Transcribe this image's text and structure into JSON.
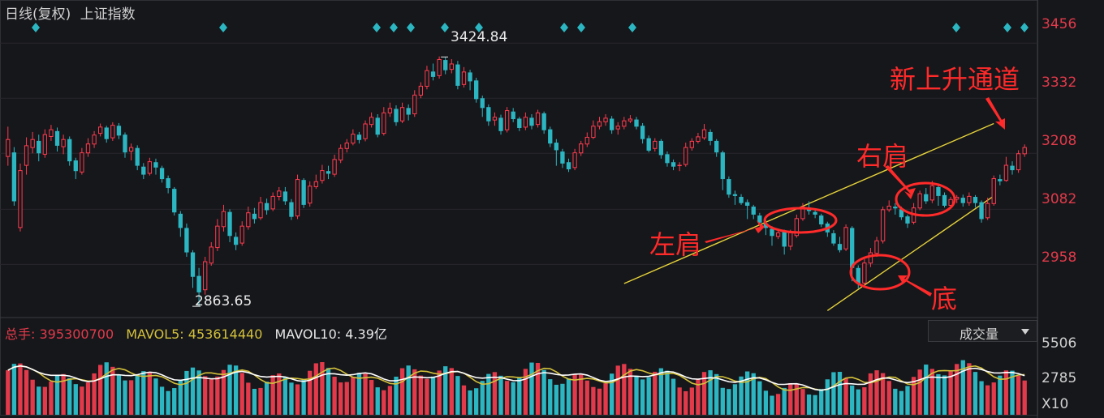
{
  "header": {
    "mode": "日线(复权)",
    "index_name": "上证指数"
  },
  "price_axis": {
    "ticks": [
      "3456",
      "3332",
      "3208",
      "3082",
      "2958"
    ]
  },
  "markers": {
    "high_label": "3424.84",
    "low_label": "2863.65"
  },
  "annotations": {
    "left_shoulder": "左肩",
    "right_shoulder": "右肩",
    "bottom": "底",
    "channel": "新上升通道"
  },
  "volume_panel": {
    "total_label": "总手:",
    "total_value": "395300700",
    "ma5_label": "MAVOL5:",
    "ma5_value": "453614440",
    "ma10_label": "MAVOL10:",
    "ma10_value": "4.39亿",
    "selector": "成交量",
    "axis_ticks": [
      "5506",
      "2785"
    ],
    "unit": "X10"
  },
  "colors": {
    "up": "#ff3b4e",
    "down": "#2bb6c2",
    "channel": "#e6d23a",
    "annotation": "#ff2a2a",
    "bg": "#16171b"
  },
  "chart_data": {
    "type": "candlestick",
    "title": "上证指数 日线(复权)",
    "ylim": [
      2842,
      3502
    ],
    "candles": [
      [
        3200,
        3240,
        3180,
        3268
      ],
      [
        3210,
        3100,
        3090,
        3222
      ],
      [
        3040,
        3170,
        3032,
        3185
      ],
      [
        3180,
        3226,
        3160,
        3244
      ],
      [
        3220,
        3240,
        3208,
        3256
      ],
      [
        3236,
        3208,
        3190,
        3250
      ],
      [
        3205,
        3251,
        3198,
        3262
      ],
      [
        3245,
        3262,
        3236,
        3272
      ],
      [
        3258,
        3225,
        3212,
        3266
      ],
      [
        3222,
        3240,
        3206,
        3250
      ],
      [
        3240,
        3190,
        3180,
        3246
      ],
      [
        3192,
        3168,
        3150,
        3198
      ],
      [
        3165,
        3210,
        3160,
        3220
      ],
      [
        3208,
        3230,
        3200,
        3242
      ],
      [
        3228,
        3250,
        3220,
        3258
      ],
      [
        3252,
        3268,
        3246,
        3275
      ],
      [
        3266,
        3240,
        3232,
        3270
      ],
      [
        3242,
        3272,
        3236,
        3278
      ],
      [
        3270,
        3248,
        3240,
        3276
      ],
      [
        3250,
        3210,
        3198,
        3255
      ],
      [
        3212,
        3222,
        3192,
        3230
      ],
      [
        3220,
        3180,
        3170,
        3226
      ],
      [
        3178,
        3160,
        3150,
        3186
      ],
      [
        3162,
        3190,
        3158,
        3198
      ],
      [
        3188,
        3176,
        3160,
        3196
      ],
      [
        3175,
        3150,
        3142,
        3180
      ],
      [
        3152,
        3130,
        3118,
        3158
      ],
      [
        3128,
        3075,
        3068,
        3132
      ],
      [
        3072,
        3040,
        3020,
        3078
      ],
      [
        3040,
        2985,
        2975,
        3050
      ],
      [
        2985,
        2930,
        2905,
        2990
      ],
      [
        2932,
        2895,
        2864,
        2950
      ],
      [
        2900,
        2965,
        2890,
        2975
      ],
      [
        2960,
        2998,
        2955,
        3008
      ],
      [
        2995,
        3045,
        2988,
        3060
      ],
      [
        3042,
        3078,
        3032,
        3092
      ],
      [
        3076,
        3022,
        3008,
        3082
      ],
      [
        3020,
        3002,
        2990,
        3030
      ],
      [
        3005,
        3045,
        3000,
        3055
      ],
      [
        3042,
        3075,
        3036,
        3088
      ],
      [
        3072,
        3060,
        3050,
        3085
      ],
      [
        3062,
        3098,
        3058,
        3110
      ],
      [
        3096,
        3080,
        3070,
        3106
      ],
      [
        3082,
        3112,
        3078,
        3120
      ],
      [
        3110,
        3124,
        3102,
        3132
      ],
      [
        3122,
        3100,
        3092,
        3132
      ],
      [
        3098,
        3065,
        3058,
        3105
      ],
      [
        3066,
        3150,
        3060,
        3160
      ],
      [
        3148,
        3092,
        3085,
        3152
      ],
      [
        3095,
        3135,
        3088,
        3145
      ],
      [
        3132,
        3145,
        3128,
        3160
      ],
      [
        3146,
        3170,
        3140,
        3182
      ],
      [
        3168,
        3162,
        3150,
        3180
      ],
      [
        3160,
        3195,
        3155,
        3205
      ],
      [
        3192,
        3220,
        3186,
        3228
      ],
      [
        3218,
        3232,
        3210,
        3240
      ],
      [
        3230,
        3252,
        3226,
        3262
      ],
      [
        3250,
        3238,
        3230,
        3256
      ],
      [
        3240,
        3275,
        3235,
        3282
      ],
      [
        3272,
        3290,
        3266,
        3300
      ],
      [
        3288,
        3250,
        3244,
        3296
      ],
      [
        3252,
        3300,
        3248,
        3312
      ],
      [
        3298,
        3310,
        3290,
        3322
      ],
      [
        3308,
        3278,
        3270,
        3316
      ],
      [
        3280,
        3312,
        3276,
        3322
      ],
      [
        3310,
        3295,
        3282,
        3318
      ],
      [
        3296,
        3340,
        3290,
        3350
      ],
      [
        3338,
        3360,
        3332,
        3368
      ],
      [
        3358,
        3395,
        3352,
        3405
      ],
      [
        3392,
        3380,
        3372,
        3410
      ],
      [
        3382,
        3420,
        3376,
        3426
      ],
      [
        3418,
        3395,
        3386,
        3424
      ],
      [
        3396,
        3410,
        3388,
        3420
      ],
      [
        3408,
        3360,
        3352,
        3416
      ],
      [
        3362,
        3392,
        3356,
        3402
      ],
      [
        3390,
        3370,
        3350,
        3396
      ],
      [
        3372,
        3330,
        3322,
        3378
      ],
      [
        3332,
        3310,
        3290,
        3338
      ],
      [
        3312,
        3280,
        3270,
        3318
      ],
      [
        3282,
        3290,
        3270,
        3300
      ],
      [
        3288,
        3258,
        3250,
        3295
      ],
      [
        3260,
        3305,
        3255,
        3312
      ],
      [
        3302,
        3285,
        3278,
        3310
      ],
      [
        3286,
        3265,
        3258,
        3290
      ],
      [
        3266,
        3290,
        3260,
        3300
      ],
      [
        3288,
        3270,
        3262,
        3296
      ],
      [
        3272,
        3300,
        3266,
        3306
      ],
      [
        3298,
        3260,
        3252,
        3302
      ],
      [
        3262,
        3230,
        3222,
        3268
      ],
      [
        3232,
        3215,
        3180,
        3240
      ],
      [
        3212,
        3185,
        3175,
        3218
      ],
      [
        3188,
        3172,
        3166,
        3196
      ],
      [
        3175,
        3210,
        3170,
        3218
      ],
      [
        3208,
        3230,
        3202,
        3236
      ],
      [
        3228,
        3245,
        3222,
        3255
      ],
      [
        3243,
        3270,
        3240,
        3282
      ],
      [
        3268,
        3280,
        3262,
        3290
      ],
      [
        3278,
        3288,
        3270,
        3296
      ],
      [
        3286,
        3260,
        3252,
        3292
      ],
      [
        3262,
        3270,
        3250,
        3278
      ],
      [
        3268,
        3282,
        3262,
        3290
      ],
      [
        3280,
        3286,
        3276,
        3294
      ],
      [
        3284,
        3268,
        3262,
        3290
      ],
      [
        3270,
        3240,
        3230,
        3276
      ],
      [
        3242,
        3214,
        3210,
        3248
      ],
      [
        3218,
        3236,
        3212,
        3242
      ],
      [
        3236,
        3204,
        3196,
        3240
      ],
      [
        3206,
        3186,
        3178,
        3212
      ],
      [
        3188,
        3178,
        3170,
        3194
      ],
      [
        3180,
        3182,
        3168,
        3188
      ],
      [
        3182,
        3222,
        3178,
        3232
      ],
      [
        3220,
        3236,
        3214,
        3242
      ],
      [
        3234,
        3246,
        3230,
        3254
      ],
      [
        3242,
        3262,
        3238,
        3274
      ],
      [
        3256,
        3236,
        3226,
        3262
      ],
      [
        3236,
        3210,
        3200,
        3240
      ],
      [
        3210,
        3150,
        3125,
        3214
      ],
      [
        3150,
        3115,
        3108,
        3156
      ],
      [
        3116,
        3112,
        3092,
        3124
      ],
      [
        3110,
        3096,
        3092,
        3116
      ],
      [
        3098,
        3090,
        3060,
        3104
      ],
      [
        3088,
        3070,
        3060,
        3092
      ],
      [
        3068,
        3052,
        3046,
        3074
      ],
      [
        3050,
        3040,
        3024,
        3058
      ],
      [
        3038,
        3022,
        3000,
        3044
      ],
      [
        3020,
        3030,
        3015,
        3034
      ],
      [
        3032,
        2998,
        2980,
        3036
      ],
      [
        2998,
        3030,
        2990,
        3036
      ],
      [
        3022,
        3062,
        3018,
        3070
      ],
      [
        3060,
        3088,
        3056,
        3096
      ],
      [
        3086,
        3078,
        3070,
        3100
      ],
      [
        3076,
        3070,
        3062,
        3084
      ],
      [
        3068,
        3048,
        3042,
        3072
      ],
      [
        3050,
        3030,
        3020,
        3054
      ],
      [
        3028,
        3005,
        3000,
        3035
      ],
      [
        3004,
        2990,
        2985,
        3020
      ],
      [
        2992,
        3042,
        2988,
        3048
      ],
      [
        3040,
        2950,
        2920,
        3044
      ],
      [
        2950,
        2915,
        2904,
        2956
      ],
      [
        2915,
        2962,
        2910,
        2970
      ],
      [
        2960,
        2985,
        2952,
        2995
      ],
      [
        2982,
        3012,
        2975,
        3020
      ],
      [
        3010,
        3082,
        3005,
        3088
      ],
      [
        3080,
        3090,
        3076,
        3102
      ],
      [
        3088,
        3084,
        3070,
        3096
      ],
      [
        3082,
        3064,
        3058,
        3088
      ],
      [
        3066,
        3050,
        3040,
        3070
      ],
      [
        3052,
        3086,
        3048,
        3096
      ],
      [
        3084,
        3118,
        3080,
        3124
      ],
      [
        3116,
        3100,
        3094,
        3130
      ],
      [
        3102,
        3136,
        3096,
        3146
      ],
      [
        3132,
        3112,
        3090,
        3140
      ],
      [
        3114,
        3090,
        3086,
        3120
      ],
      [
        3090,
        3105,
        3086,
        3110
      ],
      [
        3104,
        3110,
        3096,
        3114
      ],
      [
        3108,
        3096,
        3088,
        3115
      ],
      [
        3096,
        3112,
        3090,
        3120
      ],
      [
        3110,
        3096,
        3086,
        3114
      ],
      [
        3098,
        3060,
        3052,
        3102
      ],
      [
        3062,
        3096,
        3058,
        3108
      ],
      [
        3094,
        3152,
        3090,
        3158
      ],
      [
        3150,
        3145,
        3136,
        3160
      ],
      [
        3146,
        3182,
        3144,
        3200
      ],
      [
        3180,
        3170,
        3160,
        3190
      ],
      [
        3170,
        3208,
        3164,
        3215
      ],
      [
        3206,
        3222,
        3200,
        3228
      ]
    ],
    "high_point": 3424.84,
    "low_point": 2863.65,
    "channel_lines": [
      {
        "name": "upper",
        "from": [
          100,
          2915
        ],
        "to": [
          160,
          3275
        ]
      },
      {
        "name": "lower",
        "from": [
          133,
          2854
        ],
        "to": [
          160,
          3112
        ]
      }
    ],
    "volume_ylim": [
      0,
      5506
    ],
    "volume_ticks": [
      5506,
      2785
    ],
    "volume_unit": "X10"
  }
}
